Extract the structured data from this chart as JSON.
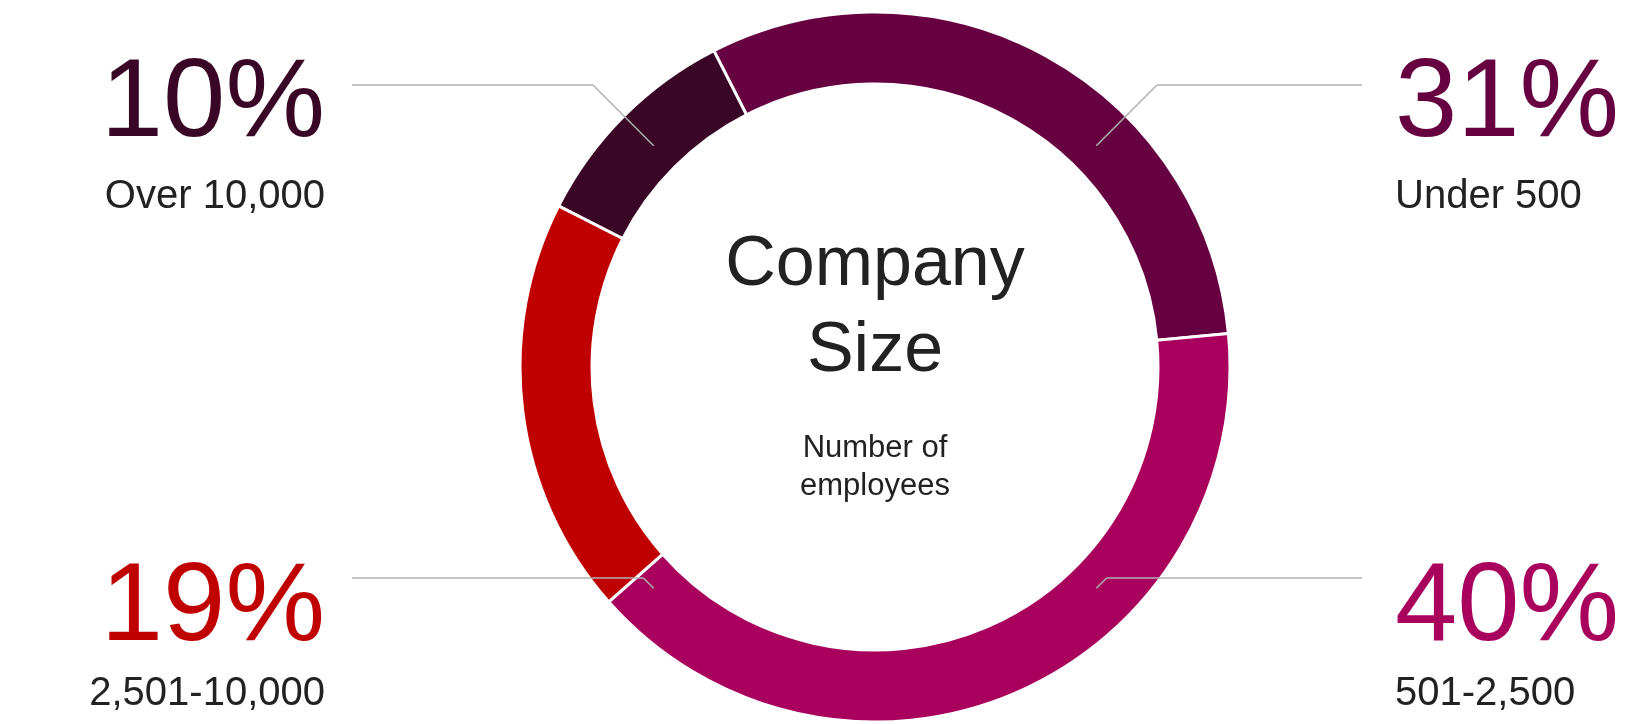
{
  "chart_data": {
    "type": "donut",
    "title": "Company Size",
    "subtitle": "Number of employees",
    "categories": [
      "Under 500",
      "501-2,500",
      "2,501-10,000",
      "Over 10,000"
    ],
    "values": [
      31,
      40,
      19,
      10
    ],
    "value_labels": [
      "31%",
      "40%",
      "19%",
      "10%"
    ],
    "colors": [
      "#660040",
      "#a8005c",
      "#c00000",
      "#3a0625"
    ]
  }
}
